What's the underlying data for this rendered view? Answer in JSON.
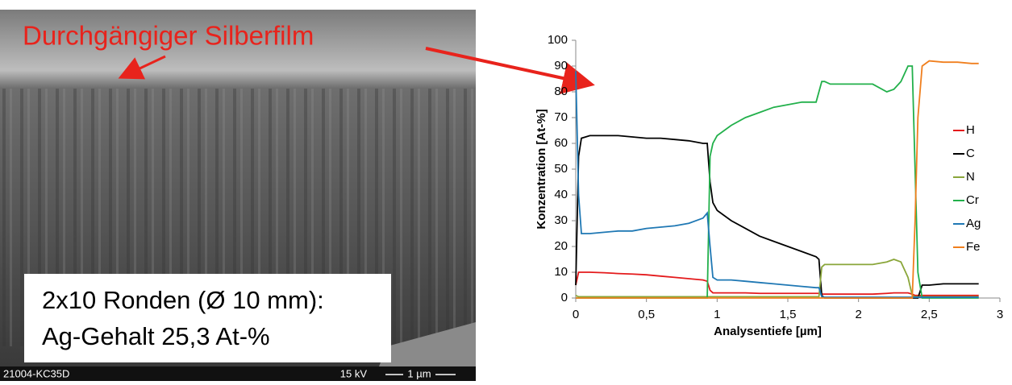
{
  "image": {
    "title": "Durchgängiger Silberfilm",
    "info_lines": [
      "2x10 Ronden (Ø 10 mm):",
      "Ag-Gehalt 25,3 At-%"
    ],
    "footer": {
      "sample": "21004-KC35D",
      "voltage": "15 kV",
      "scale": "1 µm"
    }
  },
  "chart_data": {
    "type": "line",
    "x_label": "Analysentiefe [µm]",
    "y_label": "Konzentration [At-%]",
    "x": [
      0,
      0.02,
      0.04,
      0.1,
      0.2,
      0.3,
      0.4,
      0.5,
      0.6,
      0.7,
      0.8,
      0.9,
      0.93,
      0.95,
      0.97,
      1.0,
      1.1,
      1.2,
      1.3,
      1.4,
      1.5,
      1.6,
      1.7,
      1.72,
      1.74,
      1.76,
      1.8,
      1.9,
      2.0,
      2.1,
      2.2,
      2.25,
      2.3,
      2.35,
      2.38,
      2.4,
      2.42,
      2.45,
      2.5,
      2.6,
      2.7,
      2.8,
      2.85
    ],
    "series": [
      {
        "name": "H",
        "color": "#e41a1c",
        "values": [
          5,
          10,
          10,
          10,
          9.8,
          9.5,
          9.3,
          9,
          8.5,
          8,
          7.5,
          7,
          6.5,
          3,
          2,
          2,
          2,
          2,
          1.8,
          1.8,
          1.8,
          1.8,
          1.8,
          1.8,
          1.5,
          1.5,
          1.5,
          1.5,
          1.5,
          1.5,
          1.8,
          2,
          2,
          2,
          1.5,
          1,
          1,
          1,
          1,
          1,
          1,
          1,
          1
        ]
      },
      {
        "name": "C",
        "color": "#000000",
        "values": [
          5,
          55,
          62,
          63,
          63,
          63,
          62.5,
          62,
          62,
          61.5,
          61,
          60,
          60,
          45,
          37,
          34,
          30,
          27,
          24,
          22,
          20,
          18,
          16,
          15,
          1,
          0,
          0,
          0,
          0,
          0,
          0,
          0,
          0,
          0,
          0,
          0,
          0,
          5,
          5,
          5.5,
          5.5,
          5.5,
          5.5
        ]
      },
      {
        "name": "N",
        "color": "#8aa63a",
        "values": [
          1,
          0.5,
          0.5,
          0.5,
          0.5,
          0.5,
          0.5,
          0.5,
          0.5,
          0.5,
          0.5,
          0.5,
          0.5,
          0.5,
          0.5,
          0.5,
          0.5,
          0.5,
          0.5,
          0.5,
          0.5,
          0.5,
          0.5,
          0.5,
          12,
          13,
          13,
          13,
          13,
          13,
          14,
          15,
          14,
          8,
          1,
          0.5,
          0.5,
          0.5,
          0.5,
          0.5,
          0.5,
          0.5,
          0.5
        ]
      },
      {
        "name": "Cr",
        "color": "#22b04b",
        "values": [
          0,
          0,
          0,
          0,
          0,
          0,
          0,
          0,
          0,
          0,
          0,
          0,
          0,
          55,
          60,
          63,
          67,
          70,
          72,
          74,
          75,
          76,
          76,
          80,
          84,
          84,
          83,
          83,
          83,
          83,
          80,
          81,
          84,
          90,
          90,
          50,
          10,
          0,
          0,
          0,
          0,
          0,
          0
        ]
      },
      {
        "name": "Ag",
        "color": "#1f78b4",
        "values": [
          88,
          40,
          25,
          25,
          25.5,
          26,
          26,
          27,
          27.5,
          28,
          29,
          31,
          33,
          20,
          8,
          7,
          7,
          6.5,
          6,
          5.5,
          5,
          4.5,
          4,
          4,
          0.5,
          0.3,
          0.3,
          0.3,
          0.3,
          0.3,
          0.3,
          0.3,
          0.3,
          0.3,
          0.3,
          0.3,
          0.3,
          0.3,
          0.3,
          0.3,
          0.3,
          0.3,
          0.3
        ]
      },
      {
        "name": "Fe",
        "color": "#f07f1e",
        "values": [
          0,
          0,
          0,
          0,
          0,
          0,
          0,
          0,
          0,
          0,
          0,
          0,
          0,
          0,
          0,
          0,
          0,
          0,
          0,
          0,
          0,
          0,
          0,
          0,
          0,
          0,
          0,
          0,
          0,
          0,
          0,
          0,
          0,
          0,
          0,
          30,
          70,
          90,
          92,
          91.5,
          91.5,
          91,
          91
        ]
      }
    ],
    "xlim": [
      0,
      3
    ],
    "ylim": [
      0,
      100
    ],
    "xticks": [
      0,
      {
        "value": 0.5,
        "label": "0,5"
      },
      1,
      {
        "value": 1.5,
        "label": "1,5"
      },
      2,
      {
        "value": 2.5,
        "label": "2,5"
      },
      3
    ],
    "yticks": [
      0,
      10,
      20,
      30,
      40,
      50,
      60,
      70,
      80,
      90,
      100
    ],
    "legend": "right"
  }
}
